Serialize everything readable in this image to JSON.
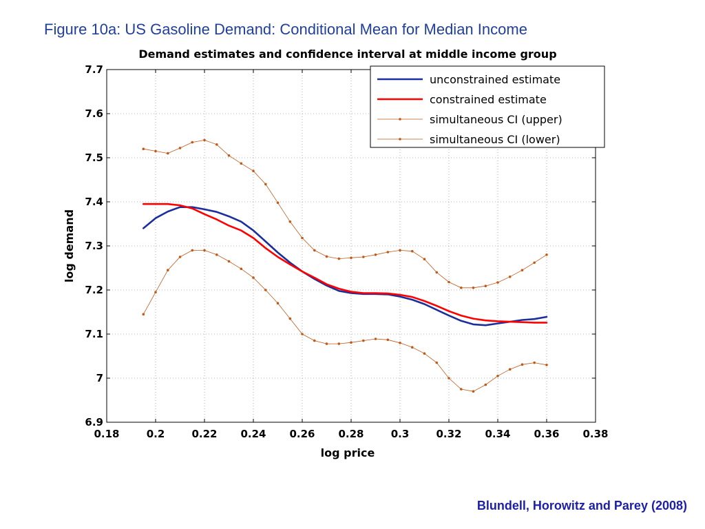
{
  "slide": {
    "title": "Figure 10a:  US Gasoline Demand: Conditional Mean for Median Income",
    "citation": "Blundell, Horowitz and Parey (2008)"
  },
  "chart_data": {
    "type": "line",
    "title": "Demand estimates and confidence interval at middle income group",
    "xlabel": "log price",
    "ylabel": "log demand",
    "xlim": [
      0.18,
      0.38
    ],
    "ylim": [
      6.9,
      7.7
    ],
    "x_ticks": [
      "0.18",
      "0.2",
      "0.22",
      "0.24",
      "0.26",
      "0.28",
      "0.3",
      "0.32",
      "0.34",
      "0.36",
      "0.38"
    ],
    "y_ticks": [
      "6.9",
      "7",
      "7.1",
      "7.2",
      "7.3",
      "7.4",
      "7.5",
      "7.6",
      "7.7"
    ],
    "grid": true,
    "legend_position": "top-right",
    "series": [
      {
        "name": "unconstrained estimate",
        "color": "#1a2f9c",
        "style": "solid",
        "x": [
          0.195,
          0.2,
          0.205,
          0.21,
          0.215,
          0.22,
          0.225,
          0.23,
          0.235,
          0.24,
          0.245,
          0.25,
          0.255,
          0.26,
          0.265,
          0.27,
          0.275,
          0.28,
          0.285,
          0.29,
          0.295,
          0.3,
          0.305,
          0.31,
          0.315,
          0.32,
          0.325,
          0.33,
          0.335,
          0.34,
          0.345,
          0.35,
          0.355,
          0.36
        ],
        "y": [
          7.34,
          7.363,
          7.378,
          7.388,
          7.388,
          7.383,
          7.377,
          7.367,
          7.355,
          7.335,
          7.31,
          7.285,
          7.262,
          7.242,
          7.225,
          7.21,
          7.198,
          7.193,
          7.191,
          7.191,
          7.19,
          7.185,
          7.178,
          7.168,
          7.155,
          7.142,
          7.13,
          7.122,
          7.12,
          7.124,
          7.128,
          7.132,
          7.134,
          7.139
        ]
      },
      {
        "name": "constrained estimate",
        "color": "#ff0000",
        "style": "solid",
        "x": [
          0.195,
          0.2,
          0.205,
          0.21,
          0.215,
          0.22,
          0.225,
          0.23,
          0.235,
          0.24,
          0.245,
          0.25,
          0.255,
          0.26,
          0.265,
          0.27,
          0.275,
          0.28,
          0.285,
          0.29,
          0.295,
          0.3,
          0.305,
          0.31,
          0.315,
          0.32,
          0.325,
          0.33,
          0.335,
          0.34,
          0.345,
          0.35,
          0.355,
          0.36
        ],
        "y": [
          7.395,
          7.395,
          7.395,
          7.392,
          7.385,
          7.372,
          7.36,
          7.346,
          7.335,
          7.318,
          7.295,
          7.275,
          7.258,
          7.242,
          7.228,
          7.213,
          7.203,
          7.196,
          7.193,
          7.193,
          7.192,
          7.189,
          7.184,
          7.175,
          7.164,
          7.152,
          7.142,
          7.135,
          7.131,
          7.129,
          7.128,
          7.127,
          7.126,
          7.126
        ]
      },
      {
        "name": "simultaneous CI (upper)",
        "color": "#c05a1a",
        "style": "dotted",
        "x": [
          0.195,
          0.2,
          0.205,
          0.21,
          0.215,
          0.22,
          0.225,
          0.23,
          0.235,
          0.24,
          0.245,
          0.25,
          0.255,
          0.26,
          0.265,
          0.27,
          0.275,
          0.28,
          0.285,
          0.29,
          0.295,
          0.3,
          0.305,
          0.31,
          0.315,
          0.32,
          0.325,
          0.33,
          0.335,
          0.34,
          0.345,
          0.35,
          0.355,
          0.36
        ],
        "y": [
          7.52,
          7.515,
          7.51,
          7.522,
          7.535,
          7.54,
          7.53,
          7.505,
          7.487,
          7.47,
          7.44,
          7.398,
          7.355,
          7.318,
          7.29,
          7.276,
          7.271,
          7.273,
          7.275,
          7.28,
          7.286,
          7.29,
          7.288,
          7.27,
          7.24,
          7.218,
          7.205,
          7.205,
          7.209,
          7.217,
          7.23,
          7.245,
          7.262,
          7.28
        ]
      },
      {
        "name": "simultaneous CI (lower)",
        "color": "#c05a1a",
        "style": "dotted",
        "x": [
          0.195,
          0.2,
          0.205,
          0.21,
          0.215,
          0.22,
          0.225,
          0.23,
          0.235,
          0.24,
          0.245,
          0.25,
          0.255,
          0.26,
          0.265,
          0.27,
          0.275,
          0.28,
          0.285,
          0.29,
          0.295,
          0.3,
          0.305,
          0.31,
          0.315,
          0.32,
          0.325,
          0.33,
          0.335,
          0.34,
          0.345,
          0.35,
          0.355,
          0.36
        ],
        "y": [
          7.145,
          7.195,
          7.245,
          7.275,
          7.29,
          7.29,
          7.28,
          7.265,
          7.248,
          7.228,
          7.2,
          7.17,
          7.135,
          7.1,
          7.085,
          7.078,
          7.078,
          7.081,
          7.085,
          7.089,
          7.087,
          7.08,
          7.07,
          7.056,
          7.035,
          7.0,
          6.975,
          6.97,
          6.985,
          7.005,
          7.02,
          7.031,
          7.035,
          7.03
        ]
      }
    ]
  }
}
